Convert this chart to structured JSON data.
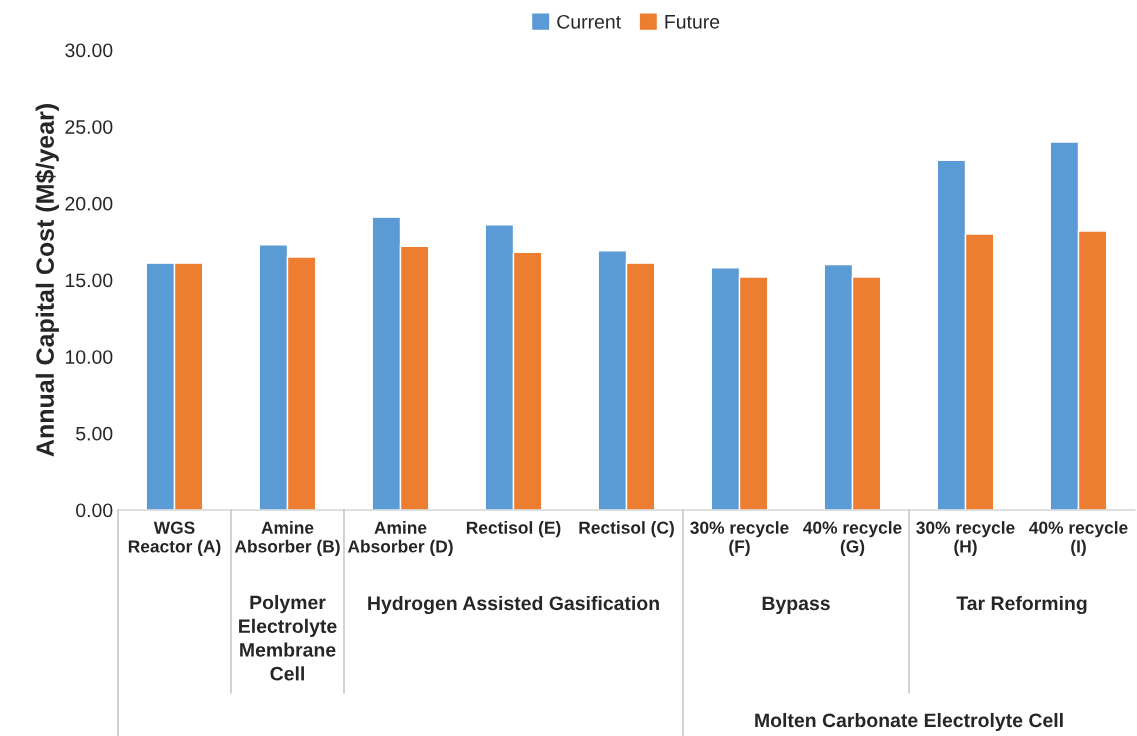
{
  "chart_data": {
    "type": "bar",
    "ylabel": "Annual Capital Cost (M$/year)",
    "categories": [
      "WGS\nReactor (A)",
      "Amine\nAbsorber (B)",
      "Amine\nAbsorber (D)",
      "Rectisol (E)",
      "Rectisol (C)",
      "30% recycle\n(F)",
      "40% recycle\n(G)",
      "30% recycle\n(H)",
      "40% recycle\n(I)"
    ],
    "series": [
      {
        "name": "Current",
        "color": "#5b9bd5",
        "values": [
          16.1,
          17.3,
          19.1,
          18.6,
          16.9,
          15.8,
          16.0,
          22.8,
          24.0
        ]
      },
      {
        "name": "Future",
        "color": "#ed7d31",
        "values": [
          16.1,
          16.5,
          17.2,
          16.8,
          16.1,
          15.2,
          15.2,
          18.0,
          18.2
        ]
      }
    ],
    "ylim": [
      0,
      30
    ],
    "yticks": [
      {
        "value": 0,
        "label": "0.00"
      },
      {
        "value": 5,
        "label": "5.00"
      },
      {
        "value": 10,
        "label": "10.00"
      },
      {
        "value": 15,
        "label": "15.00"
      },
      {
        "value": 20,
        "label": "20.00"
      },
      {
        "value": 25,
        "label": "25.00"
      },
      {
        "value": 30,
        "label": "30.00"
      }
    ],
    "annotations": [
      "Polymer\nElectrolyte\nMembrane\nCell",
      "Hydrogen Assisted Gasification",
      "Bypass",
      "Tar Reforming",
      "Molten Carbonate Electrolyte Cell"
    ],
    "legend": "top",
    "grid": false
  }
}
